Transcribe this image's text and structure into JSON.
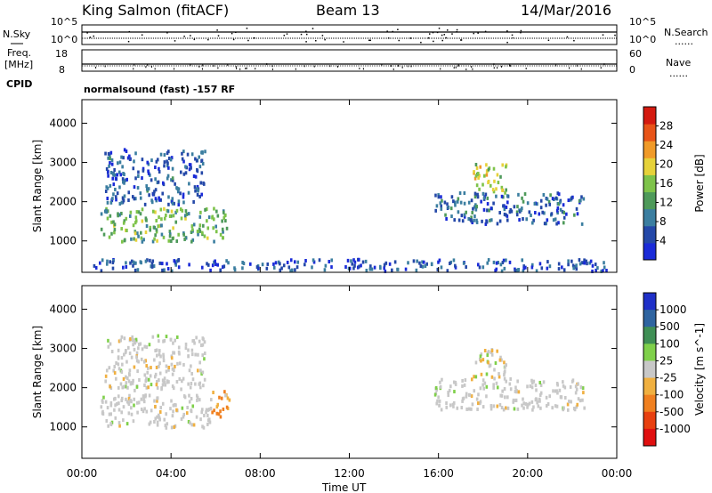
{
  "header": {
    "station": "King Salmon (fitACF)",
    "beam": "Beam 13",
    "date": "14/Mar/2016"
  },
  "sidebar": {
    "nsky": "N.Sky",
    "freq1": "Freq.",
    "freq2": "[MHz]",
    "cpid": "CPID",
    "nsearch": "N.Search",
    "nave": "Nave",
    "dots": "......"
  },
  "strip": {
    "sky_top": "10^5",
    "sky_bot": "10^0",
    "freq_top": "18",
    "freq_bot": "8",
    "nave_top": "60",
    "nave_bot": "0",
    "cpid_text": "normalsound (fast) -157 RF"
  },
  "chart_data": [
    {
      "type": "heatmap",
      "ylabel": "Slant Range [km]",
      "ylim": [
        200,
        4600
      ],
      "yticks": [
        "1000",
        "2000",
        "3000",
        "4000"
      ],
      "xlabel": "Time UT",
      "xlim": [
        0,
        24
      ],
      "xticks": [
        "00:00",
        "04:00",
        "08:00",
        "12:00",
        "16:00",
        "20:00",
        "00:00"
      ],
      "colorbar_label": "Power [dB]",
      "colorbar_ticks": [
        "4",
        "8",
        "12",
        "16",
        "20",
        "24",
        "28"
      ],
      "colorbar_range": [
        0,
        32
      ],
      "regions": [
        {
          "t0": 0.8,
          "t1": 6.5,
          "r0": 950,
          "r1": 1800,
          "level": 14
        },
        {
          "t0": 1.0,
          "t1": 5.5,
          "r0": 1900,
          "r1": 3300,
          "level": 6
        },
        {
          "t0": 15.8,
          "t1": 22.5,
          "r0": 1400,
          "r1": 2200,
          "level": 7
        },
        {
          "t0": 17.5,
          "t1": 19.0,
          "r0": 2200,
          "r1": 3000,
          "level": 18
        },
        {
          "t0": 0.5,
          "t1": 23.5,
          "r0": 200,
          "r1": 500,
          "level": 5
        }
      ]
    },
    {
      "type": "heatmap",
      "ylabel": "Slant Range [km]",
      "ylim": [
        200,
        4600
      ],
      "yticks": [
        "1000",
        "2000",
        "3000",
        "4000"
      ],
      "xlabel": "Time UT",
      "xlim": [
        0,
        24
      ],
      "xticks": [
        "00:00",
        "04:00",
        "08:00",
        "12:00",
        "16:00",
        "20:00",
        "00:00"
      ],
      "colorbar_label": "Velocity [m s^-1]",
      "colorbar_ticks": [
        "1000",
        "500",
        "100",
        "25",
        "-25",
        "-100",
        "-500",
        "-1000"
      ],
      "regions": [
        {
          "t0": 0.8,
          "t1": 5.8,
          "r0": 950,
          "r1": 1800,
          "velocity": 0
        },
        {
          "t0": 5.8,
          "t1": 6.6,
          "r0": 1200,
          "r1": 1900,
          "velocity": -300
        },
        {
          "t0": 1.0,
          "t1": 5.5,
          "r0": 1900,
          "r1": 3300,
          "velocity": 0
        },
        {
          "t0": 15.8,
          "t1": 22.5,
          "r0": 1400,
          "r1": 2200,
          "velocity": 0
        },
        {
          "t0": 17.5,
          "t1": 19.0,
          "r0": 2200,
          "r1": 3000,
          "velocity": -60
        }
      ]
    }
  ],
  "colors": {
    "power_scale": [
      "#1a2bd8",
      "#2448a8",
      "#3b7ea0",
      "#4e9a5a",
      "#7ec34a",
      "#e6d23a",
      "#f09a28",
      "#e85418",
      "#d41a10"
    ],
    "velocity_scale": [
      "#1f30c8",
      "#2f64a0",
      "#3f8f55",
      "#7fd04a",
      "#c8c8c8",
      "#f0b040",
      "#f08020",
      "#e84010",
      "#e01010"
    ],
    "ground": "#c8c8c8"
  }
}
